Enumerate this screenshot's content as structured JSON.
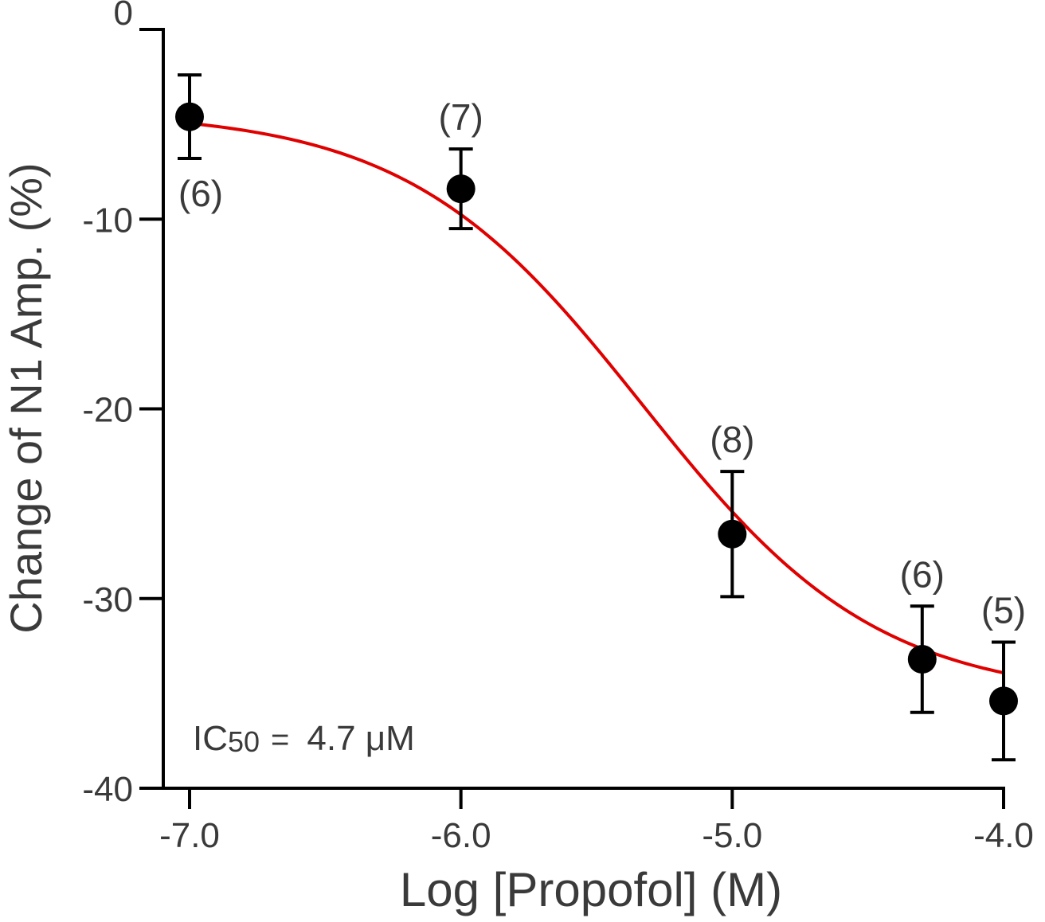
{
  "chart_data": {
    "type": "scatter",
    "xlabel": "Log [Propofol] (M)",
    "ylabel": "Change  of N1 Amp. (%)",
    "xlim": [
      -7.0,
      -4.0
    ],
    "ylim": [
      -40,
      0
    ],
    "x_ticks": [
      -7.0,
      -6.0,
      -5.0,
      -4.0
    ],
    "x_tick_labels": [
      "-7.0",
      "-6.0",
      "-5.0",
      "-4.0"
    ],
    "y_ticks": [
      0,
      -10,
      -20,
      -30,
      -40
    ],
    "y_tick_labels": [
      "0",
      "-10",
      "-20",
      "-30",
      "-40"
    ],
    "grid": false,
    "series": [
      {
        "points": [
          {
            "x": -7.0,
            "y": -4.6,
            "err": 2.2,
            "n_label": "(6)",
            "label_pos": "below"
          },
          {
            "x": -6.0,
            "y": -8.4,
            "err": 2.1,
            "n_label": "(7)",
            "label_pos": "above"
          },
          {
            "x": -5.0,
            "y": -26.6,
            "err": 3.3,
            "n_label": "(8)",
            "label_pos": "above"
          },
          {
            "x": -4.3,
            "y": -33.2,
            "err": 2.8,
            "n_label": "(6)",
            "label_pos": "above"
          },
          {
            "x": -4.0,
            "y": -35.4,
            "err": 3.1,
            "n_label": "(5)",
            "label_pos": "above"
          }
        ]
      }
    ],
    "fit": {
      "model": "sigmoid",
      "top": -4.3,
      "bottom": -35.3,
      "log_ic50": -5.33,
      "hill": 1.0,
      "x_range": [
        -7.0,
        -4.0
      ],
      "color": "#e00000"
    },
    "annotation": {
      "prefix": "IC",
      "subscript": "50",
      "equals": "=",
      "value": "4.7 μM"
    },
    "colors": {
      "points": "#000000",
      "axis": "#000000",
      "fit_line": "#e00000"
    }
  }
}
